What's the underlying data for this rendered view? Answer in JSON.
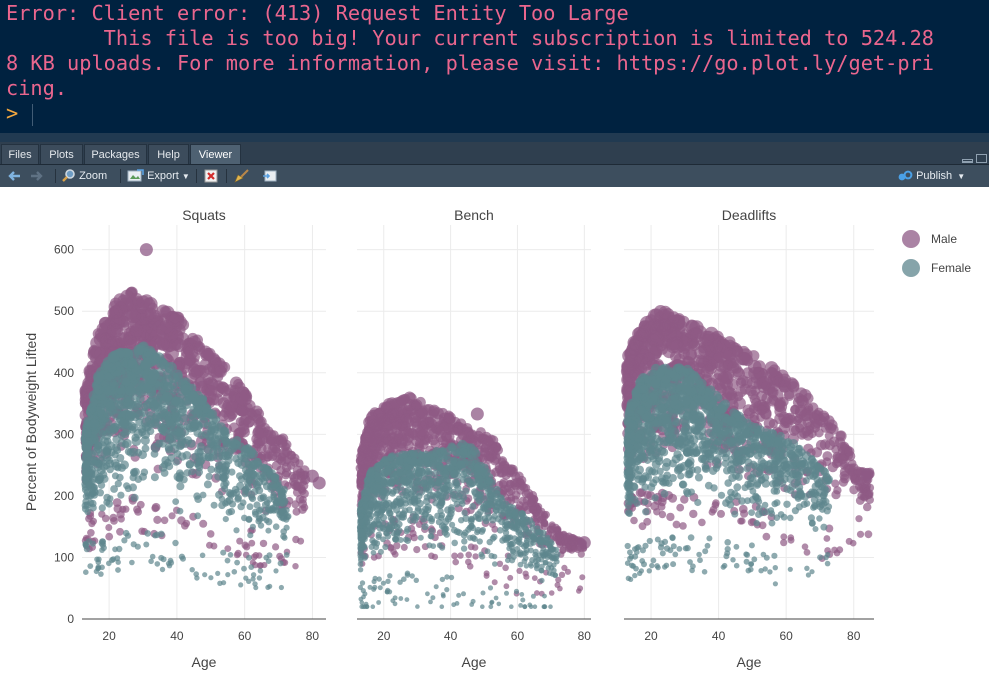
{
  "console": {
    "lines": [
      "Error: Client error: (413) Request Entity Too Large",
      "        This file is too big! Your current subscription is limited to 524.28",
      "8 KB uploads. For more information, please visit: https://go.plot.ly/get-pri",
      "cing."
    ],
    "prompt": ">"
  },
  "pane_tabs": [
    "Files",
    "Plots",
    "Packages",
    "Help",
    "Viewer"
  ],
  "active_tab": "Viewer",
  "toolbar": {
    "zoom_label": "Zoom",
    "export_label": "Export",
    "publish_label": "Publish"
  },
  "colors": {
    "male": "#8e5a85",
    "female": "#5e868d",
    "console_bg": "#002240",
    "error_text": "#ea668e"
  },
  "chart_data": {
    "type": "scatter",
    "ylabel": "Percent of Bodyweight Lifted",
    "xlabel": "Age",
    "ylim": [
      0,
      640
    ],
    "yticks": [
      0,
      100,
      200,
      300,
      400,
      500,
      600
    ],
    "xticks": [
      20,
      40,
      60,
      80
    ],
    "legend": [
      "Male",
      "Female"
    ],
    "legend_position": "top-right",
    "panels": [
      {
        "title": "Squats",
        "xlim": [
          12,
          84
        ],
        "male_upper": [
          [
            13,
            370
          ],
          [
            17,
            470
          ],
          [
            22,
            520
          ],
          [
            28,
            540
          ],
          [
            34,
            505
          ],
          [
            40,
            495
          ],
          [
            47,
            450
          ],
          [
            54,
            410
          ],
          [
            60,
            370
          ],
          [
            66,
            320
          ],
          [
            72,
            290
          ],
          [
            78,
            240
          ]
        ],
        "male_lower": [
          [
            13,
            170
          ],
          [
            20,
            190
          ],
          [
            30,
            200
          ],
          [
            40,
            190
          ],
          [
            50,
            170
          ],
          [
            60,
            150
          ],
          [
            66,
            140
          ],
          [
            72,
            135
          ],
          [
            78,
            140
          ],
          [
            82,
            170
          ]
        ],
        "female_upper": [
          [
            13,
            300
          ],
          [
            17,
            400
          ],
          [
            22,
            430
          ],
          [
            30,
            445
          ],
          [
            38,
            410
          ],
          [
            46,
            370
          ],
          [
            52,
            320
          ],
          [
            58,
            290
          ],
          [
            63,
            270
          ],
          [
            68,
            240
          ],
          [
            73,
            200
          ]
        ],
        "female_lower": [
          [
            13,
            130
          ],
          [
            20,
            130
          ],
          [
            30,
            150
          ],
          [
            40,
            130
          ],
          [
            50,
            115
          ],
          [
            60,
            105
          ],
          [
            66,
            110
          ],
          [
            72,
            105
          ]
        ],
        "male_outliers": [
          [
            31,
            600
          ],
          [
            82,
            221
          ],
          [
            80,
            232
          ]
        ]
      },
      {
        "title": "Bench",
        "xlim": [
          12,
          82
        ],
        "male_upper": [
          [
            13,
            260
          ],
          [
            16,
            330
          ],
          [
            22,
            355
          ],
          [
            28,
            360
          ],
          [
            34,
            345
          ],
          [
            40,
            330
          ],
          [
            48,
            310
          ],
          [
            53,
            290
          ],
          [
            58,
            250
          ],
          [
            63,
            215
          ],
          [
            68,
            175
          ],
          [
            73,
            140
          ],
          [
            80,
            125
          ]
        ],
        "male_lower": [
          [
            13,
            140
          ],
          [
            20,
            160
          ],
          [
            30,
            170
          ],
          [
            40,
            150
          ],
          [
            50,
            120
          ],
          [
            60,
            100
          ],
          [
            67,
            90
          ],
          [
            73,
            90
          ],
          [
            80,
            100
          ]
        ],
        "female_upper": [
          [
            13,
            180
          ],
          [
            16,
            240
          ],
          [
            22,
            265
          ],
          [
            30,
            270
          ],
          [
            38,
            275
          ],
          [
            45,
            290
          ],
          [
            50,
            250
          ],
          [
            56,
            190
          ],
          [
            62,
            170
          ],
          [
            68,
            140
          ],
          [
            72,
            110
          ]
        ],
        "female_lower": [
          [
            13,
            60
          ],
          [
            20,
            70
          ],
          [
            30,
            80
          ],
          [
            40,
            70
          ],
          [
            50,
            55
          ],
          [
            60,
            45
          ],
          [
            67,
            45
          ],
          [
            72,
            50
          ]
        ],
        "male_outliers": [
          [
            48,
            333
          ],
          [
            80,
            124
          ]
        ]
      },
      {
        "title": "Deadlifts",
        "xlim": [
          12,
          86
        ],
        "male_upper": [
          [
            13,
            420
          ],
          [
            16,
            465
          ],
          [
            22,
            500
          ],
          [
            28,
            495
          ],
          [
            34,
            475
          ],
          [
            40,
            460
          ],
          [
            47,
            440
          ],
          [
            53,
            420
          ],
          [
            58,
            400
          ],
          [
            64,
            375
          ],
          [
            70,
            340
          ],
          [
            76,
            300
          ],
          [
            82,
            240
          ],
          [
            85,
            240
          ]
        ],
        "male_lower": [
          [
            13,
            200
          ],
          [
            20,
            210
          ],
          [
            30,
            210
          ],
          [
            40,
            200
          ],
          [
            50,
            185
          ],
          [
            60,
            170
          ],
          [
            66,
            160
          ],
          [
            72,
            155
          ],
          [
            78,
            150
          ],
          [
            82,
            170
          ]
        ],
        "female_upper": [
          [
            13,
            330
          ],
          [
            17,
            390
          ],
          [
            22,
            410
          ],
          [
            30,
            410
          ],
          [
            38,
            370
          ],
          [
            46,
            330
          ],
          [
            52,
            310
          ],
          [
            58,
            300
          ],
          [
            64,
            280
          ],
          [
            70,
            250
          ],
          [
            73,
            230
          ]
        ],
        "female_lower": [
          [
            13,
            120
          ],
          [
            20,
            130
          ],
          [
            30,
            140
          ],
          [
            40,
            130
          ],
          [
            50,
            120
          ],
          [
            60,
            115
          ],
          [
            66,
            110
          ],
          [
            72,
            110
          ]
        ],
        "male_outliers": [
          [
            84,
            235
          ],
          [
            27,
            310
          ]
        ]
      }
    ]
  }
}
